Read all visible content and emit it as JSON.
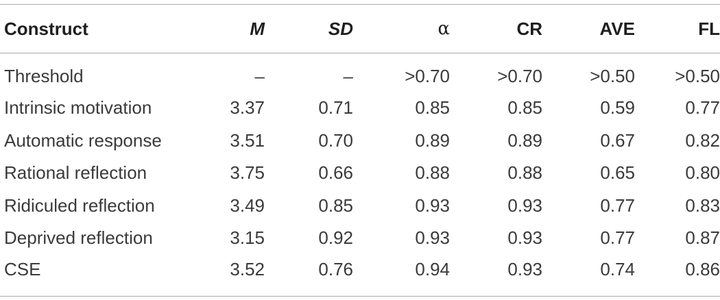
{
  "table": {
    "headers": [
      "Construct",
      "M",
      "SD",
      "α",
      "CR",
      "AVE",
      "FL"
    ],
    "rows": [
      [
        "Threshold",
        "–",
        "–",
        ">0.70",
        ">0.70",
        ">0.50",
        ">0.50"
      ],
      [
        "Intrinsic motivation",
        "3.37",
        "0.71",
        "0.85",
        "0.85",
        "0.59",
        "0.77"
      ],
      [
        "Automatic response",
        "3.51",
        "0.70",
        "0.89",
        "0.89",
        "0.67",
        "0.82"
      ],
      [
        "Rational reflection",
        "3.75",
        "0.66",
        "0.88",
        "0.88",
        "0.65",
        "0.80"
      ],
      [
        "Ridiculed reflection",
        "3.49",
        "0.85",
        "0.93",
        "0.93",
        "0.77",
        "0.83"
      ],
      [
        "Deprived reflection",
        "3.15",
        "0.92",
        "0.93",
        "0.93",
        "0.77",
        "0.87"
      ],
      [
        "CSE",
        "3.52",
        "0.76",
        "0.94",
        "0.93",
        "0.74",
        "0.86"
      ]
    ]
  }
}
